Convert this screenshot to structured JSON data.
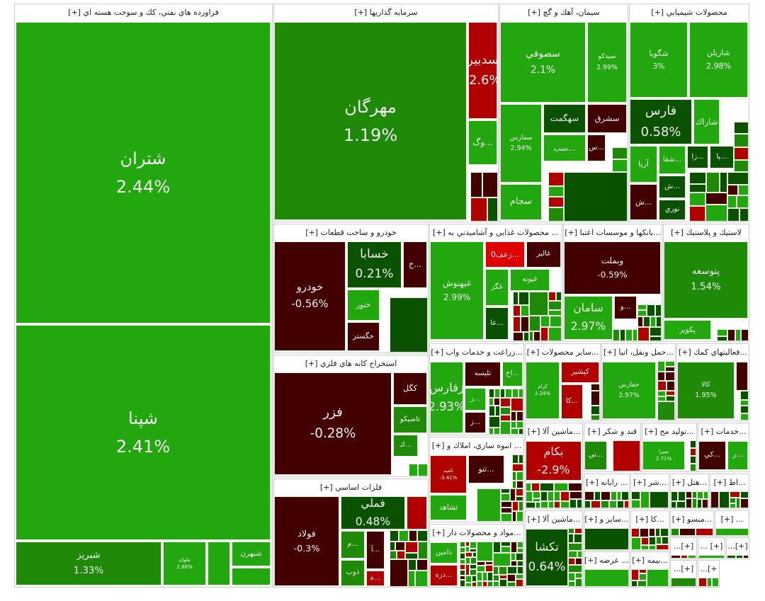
{
  "colors": {
    "bright_green": "#22a80e",
    "green": "#1e8a07",
    "dark_green": "#0b5200",
    "maroon": "#420000",
    "red": "#b10000",
    "bright_red": "#e00000"
  },
  "chart_data": {
    "type": "treemap",
    "sectors": [
      {
        "name": "فراورده هاي نفتي، كك و سوخت هسته اي [+]",
        "tiles": [
          {
            "name": "شتران",
            "change": "2.44%",
            "color": "bright_green"
          },
          {
            "name": "شپنا",
            "change": "2.41%",
            "color": "bright_green"
          },
          {
            "name": "شبريز",
            "change": "1.33%",
            "color": "green"
          },
          {
            "name": "ملوان",
            "change": "2.86%",
            "color": "bright_green"
          },
          {
            "name": "",
            "change": "",
            "color": "bright_green"
          },
          {
            "name": "شبهرن",
            "change": "",
            "color": "bright_green"
          },
          {
            "name": "",
            "change": "",
            "color": "bright_green"
          }
        ]
      },
      {
        "name": "سرمايه گذاريها [+]",
        "tiles": [
          {
            "name": "مهرگان",
            "change": "1.19%",
            "color": "green"
          },
          {
            "name": "سدبير",
            "change": "-2.6%",
            "color": "red"
          },
          {
            "name": "...وگ",
            "change": "",
            "color": "bright_green"
          }
        ]
      },
      {
        "name": "سيمان، آهك و گچ [+]",
        "tiles": [
          {
            "name": "سصوفي",
            "change": "2.1%",
            "color": "bright_green"
          },
          {
            "name": "سيدكو",
            "change": "2.99%",
            "color": "bright_green"
          },
          {
            "name": "سفارس",
            "change": "2.94%",
            "color": "bright_green"
          },
          {
            "name": "سجام",
            "change": "",
            "color": "bright_green"
          },
          {
            "name": "سهگمت",
            "change": "",
            "color": "dark_green"
          },
          {
            "name": "سشرق",
            "change": "",
            "color": "maroon"
          },
          {
            "name": "...سب",
            "change": "",
            "color": "bright_green"
          },
          {
            "name": "...س",
            "change": "",
            "color": "maroon"
          }
        ]
      },
      {
        "name": "محصولات شيميايي [+]",
        "tiles": [
          {
            "name": "شگويا",
            "change": "3%",
            "color": "bright_green"
          },
          {
            "name": "شاريلن",
            "change": "2.98%",
            "color": "bright_green"
          },
          {
            "name": "فارس",
            "change": "0.58%",
            "color": "dark_green"
          },
          {
            "name": "شاراك",
            "change": "",
            "color": "bright_green"
          },
          {
            "name": "آريا",
            "change": "",
            "color": "bright_green"
          },
          {
            "name": "...شفا",
            "change": "",
            "color": "bright_green"
          },
          {
            "name": "...زا",
            "change": "",
            "color": "dark_green"
          },
          {
            "name": "...پا",
            "change": "",
            "color": "dark_green"
          },
          {
            "name": "...ش",
            "change": "",
            "color": "dark_green"
          },
          {
            "name": "نوري",
            "change": "",
            "color": "dark_green"
          },
          {
            "name": "...ش",
            "change": "",
            "color": "maroon"
          }
        ]
      },
      {
        "name": "خودرو و ساخت قطعات [+]",
        "tiles": [
          {
            "name": "خودرو",
            "change": "-0.56%",
            "color": "maroon"
          },
          {
            "name": "خسابا",
            "change": "0.21%",
            "color": "dark_green"
          },
          {
            "name": "...خ",
            "change": "",
            "color": "maroon"
          },
          {
            "name": "خنور",
            "change": "",
            "color": "bright_green"
          },
          {
            "name": "خگستر",
            "change": "",
            "color": "maroon"
          }
        ]
      },
      {
        "name": "... محصولات غذايي و آشاميدني به [+]",
        "tiles": [
          {
            "name": "غبهنوش",
            "change": "2.99%",
            "color": "bright_green"
          },
          {
            "name": "...زعف0",
            "change": "",
            "color": "bright_red"
          },
          {
            "name": "غالبر",
            "change": "",
            "color": "maroon"
          },
          {
            "name": "غگز",
            "change": "",
            "color": "bright_green"
          },
          {
            "name": "غپونه",
            "change": "",
            "color": "bright_green"
          },
          {
            "name": "...عا",
            "change": "",
            "color": "dark_green"
          }
        ]
      },
      {
        "name": "...بانكها و موسسات اعتبا [+]",
        "tiles": [
          {
            "name": "وبملت",
            "change": "-0.59%",
            "color": "maroon"
          },
          {
            "name": "سامان",
            "change": "2.97%",
            "color": "bright_green"
          },
          {
            "name": "...و",
            "change": "",
            "color": "maroon"
          }
        ]
      },
      {
        "name": "لاستيك و پلاستيك [+]",
        "tiles": [
          {
            "name": "پتوسعه",
            "change": "1.54%",
            "color": "green"
          },
          {
            "name": "پكوير",
            "change": "",
            "color": "bright_green"
          }
        ]
      },
      {
        "name": "استخراج كانه هاي فلزي [+]",
        "tiles": [
          {
            "name": "فزر",
            "change": "-0.28%",
            "color": "maroon"
          },
          {
            "name": "كگل",
            "change": "",
            "color": "maroon"
          },
          {
            "name": "تاصيكو",
            "change": "",
            "color": "green"
          },
          {
            "name": "...ك",
            "change": "",
            "color": "green"
          }
        ]
      },
      {
        "name": "فلزات اساسي [+]",
        "tiles": [
          {
            "name": "فولاد",
            "change": "-0.3%",
            "color": "maroon"
          },
          {
            "name": "فملي",
            "change": "0.48%",
            "color": "dark_green"
          },
          {
            "name": "",
            "change": "",
            "color": "red"
          },
          {
            "name": "...م",
            "change": "",
            "color": "green"
          },
          {
            "name": "...آ",
            "change": "",
            "color": "maroon"
          },
          {
            "name": "ذوب",
            "change": "",
            "color": "green"
          },
          {
            "name": "...ه",
            "change": "",
            "color": "red"
          }
        ]
      },
      {
        "name": "...زراعت و خدمات واب [+]",
        "tiles": [
          {
            "name": "زفارس",
            "change": "2.93%",
            "color": "bright_green"
          },
          {
            "name": "تليسه",
            "change": "",
            "color": "maroon"
          },
          {
            "name": "...اخ",
            "change": "",
            "color": "bright_green"
          },
          {
            "name": "...ز",
            "change": "",
            "color": "bright_green"
          },
          {
            "name": "...ز",
            "change": "",
            "color": "maroon"
          }
        ]
      },
      {
        "name": "...ساير محصولات [+]",
        "tiles": [
          {
            "name": "كرام",
            "change": "2.24%",
            "color": "bright_green"
          },
          {
            "name": "كپشير",
            "change": "",
            "color": "red"
          },
          {
            "name": "...كا",
            "change": "",
            "color": "red"
          }
        ]
      },
      {
        "name": "...حمل ونقل، انبا [+]",
        "tiles": [
          {
            "name": "حفارس",
            "change": "2.97%",
            "color": "bright_green"
          }
        ]
      },
      {
        "name": "...فعاليتهاي كمك [+]",
        "tiles": [
          {
            "name": "كالا",
            "change": "1.95%",
            "color": "green"
          },
          {
            "name": "",
            "change": "",
            "color": "maroon"
          }
        ]
      },
      {
        "name": "... انبوه سازي، املاك و [+]",
        "tiles": [
          {
            "name": "ثاميد",
            "change": "-3.41%",
            "color": "red"
          },
          {
            "name": "...ثنو",
            "change": "",
            "color": "maroon"
          },
          {
            "name": "ثشاهد",
            "change": "",
            "color": "bright_green"
          }
        ]
      },
      {
        "name": "...مواد و محصولات دار [+]",
        "tiles": [
          {
            "name": "دامين",
            "change": "",
            "color": "bright_green"
          },
          {
            "name": "...دزه",
            "change": "",
            "color": "red"
          }
        ]
      },
      {
        "name": "...ماشين آلا [+]",
        "tiles": [
          {
            "name": "بكام",
            "change": "-2.9%",
            "color": "red"
          }
        ]
      },
      {
        "name": "...ماشين آلا [+]",
        "tiles": [
          {
            "name": "تكشا",
            "change": "0.64%",
            "color": "dark_green"
          }
        ]
      },
      {
        "name": "قند و شكر [+]",
        "tiles": [
          {
            "name": "...ني",
            "change": "",
            "color": "green"
          }
        ]
      },
      {
        "name": "...توليد مح [+]",
        "tiles": [
          {
            "name": "مبيرا",
            "change": "2.71%",
            "color": "bright_green"
          }
        ]
      },
      {
        "name": "...خدمات [+]",
        "tiles": [
          {
            "name": "...كي",
            "change": "",
            "color": "maroon"
          },
          {
            "name": "...ر",
            "change": "",
            "color": "bright_green"
          }
        ]
      },
      {
        "name": "... رايانه [+]",
        "tiles": []
      },
      {
        "name": "...شر [+]",
        "tiles": []
      },
      {
        "name": "...هتل [+]",
        "tiles": []
      },
      {
        "name": "...اط [+]",
        "tiles": []
      },
      {
        "name": "...ساير و [+]",
        "tiles": []
      },
      {
        "name": "...كا [+]",
        "tiles": []
      },
      {
        "name": "...منسو [+]",
        "tiles": []
      },
      {
        "name": "... [+]",
        "tiles": []
      },
      {
        "name": "... عرضه [+]",
        "tiles": []
      },
      {
        "name": "...بيمه [+]",
        "tiles": []
      },
      {
        "name": "[+]...",
        "tiles": []
      },
      {
        "name": "[+] ...",
        "tiles": []
      },
      {
        "name": "[+]...",
        "tiles": []
      },
      {
        "name": "[+]...",
        "tiles": []
      },
      {
        "name": "+]...",
        "tiles": []
      }
    ]
  }
}
